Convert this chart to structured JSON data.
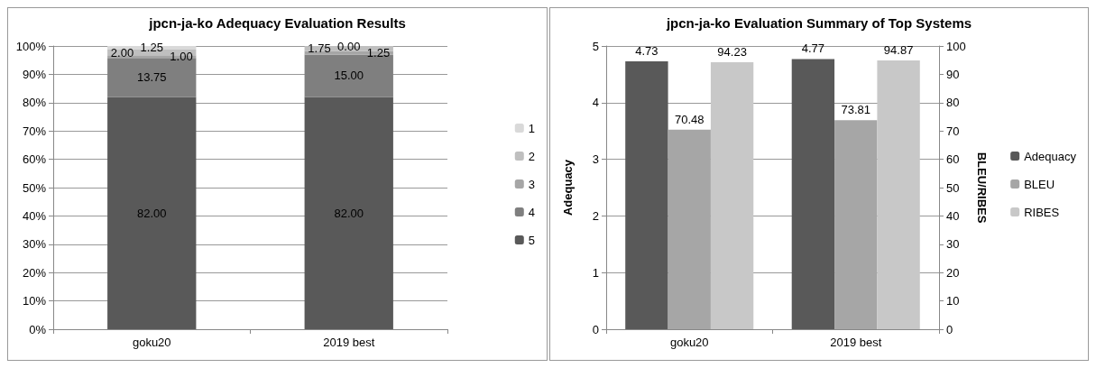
{
  "chart_data": [
    {
      "type": "bar",
      "title": "jpcn-ja-ko Adequacy Evaluation Results",
      "categories": [
        "goku20",
        "2019 best"
      ],
      "stacked": true,
      "ylim": [
        0,
        100
      ],
      "yticks": [
        {
          "value": 0,
          "label": "0%"
        },
        {
          "value": 10,
          "label": "10%"
        },
        {
          "value": 20,
          "label": "20%"
        },
        {
          "value": 30,
          "label": "30%"
        },
        {
          "value": 40,
          "label": "40%"
        },
        {
          "value": 50,
          "label": "50%"
        },
        {
          "value": 60,
          "label": "60%"
        },
        {
          "value": 70,
          "label": "70%"
        },
        {
          "value": 80,
          "label": "80%"
        },
        {
          "value": 90,
          "label": "90%"
        },
        {
          "value": 100,
          "label": "100%"
        }
      ],
      "grid": "y",
      "legend": "right",
      "series": [
        {
          "name": "5",
          "color": "#595959",
          "values": [
            82,
            82
          ],
          "value_labels": [
            "82.00",
            "82.00"
          ]
        },
        {
          "name": "4",
          "color": "#7f7f7f",
          "values": [
            13.75,
            15
          ],
          "value_labels": [
            "13.75",
            "15.00"
          ]
        },
        {
          "name": "3",
          "color": "#a6a6a6",
          "values": [
            1,
            1.25
          ],
          "value_labels": [
            "1.00",
            "1.25"
          ]
        },
        {
          "name": "2",
          "color": "#bfbfbf",
          "values": [
            2,
            1.75
          ],
          "value_labels": [
            "2.00",
            "1.75"
          ]
        },
        {
          "name": "1",
          "color": "#d9d9d9",
          "values": [
            1.25,
            0
          ],
          "value_labels": [
            "1.25",
            "0.00"
          ]
        }
      ]
    },
    {
      "type": "bar",
      "title": "jpcn-ja-ko Evaluation Summary of Top Systems",
      "categories": [
        "goku20",
        "2019 best"
      ],
      "ylabel": "Adequacy",
      "y2label": "BLEU/RIBES",
      "ylim": [
        0,
        5
      ],
      "yticks": [
        0,
        1,
        2,
        3,
        4,
        5
      ],
      "y2lim": [
        0,
        100
      ],
      "y2ticks": [
        0,
        10,
        20,
        30,
        40,
        50,
        60,
        70,
        80,
        90,
        100
      ],
      "grid": "y",
      "legend": "right",
      "data_labels": true,
      "series": [
        {
          "name": "Adequacy",
          "color": "#595959",
          "values": [
            4.73,
            4.77
          ]
        },
        {
          "name": "BLEU",
          "color": "#a6a6a6",
          "values": [
            70.48,
            73.81
          ],
          "axis": "y2"
        },
        {
          "name": "RIBES",
          "color": "#c8c8c8",
          "values": [
            94.23,
            94.87
          ],
          "axis": "y2"
        }
      ]
    }
  ]
}
